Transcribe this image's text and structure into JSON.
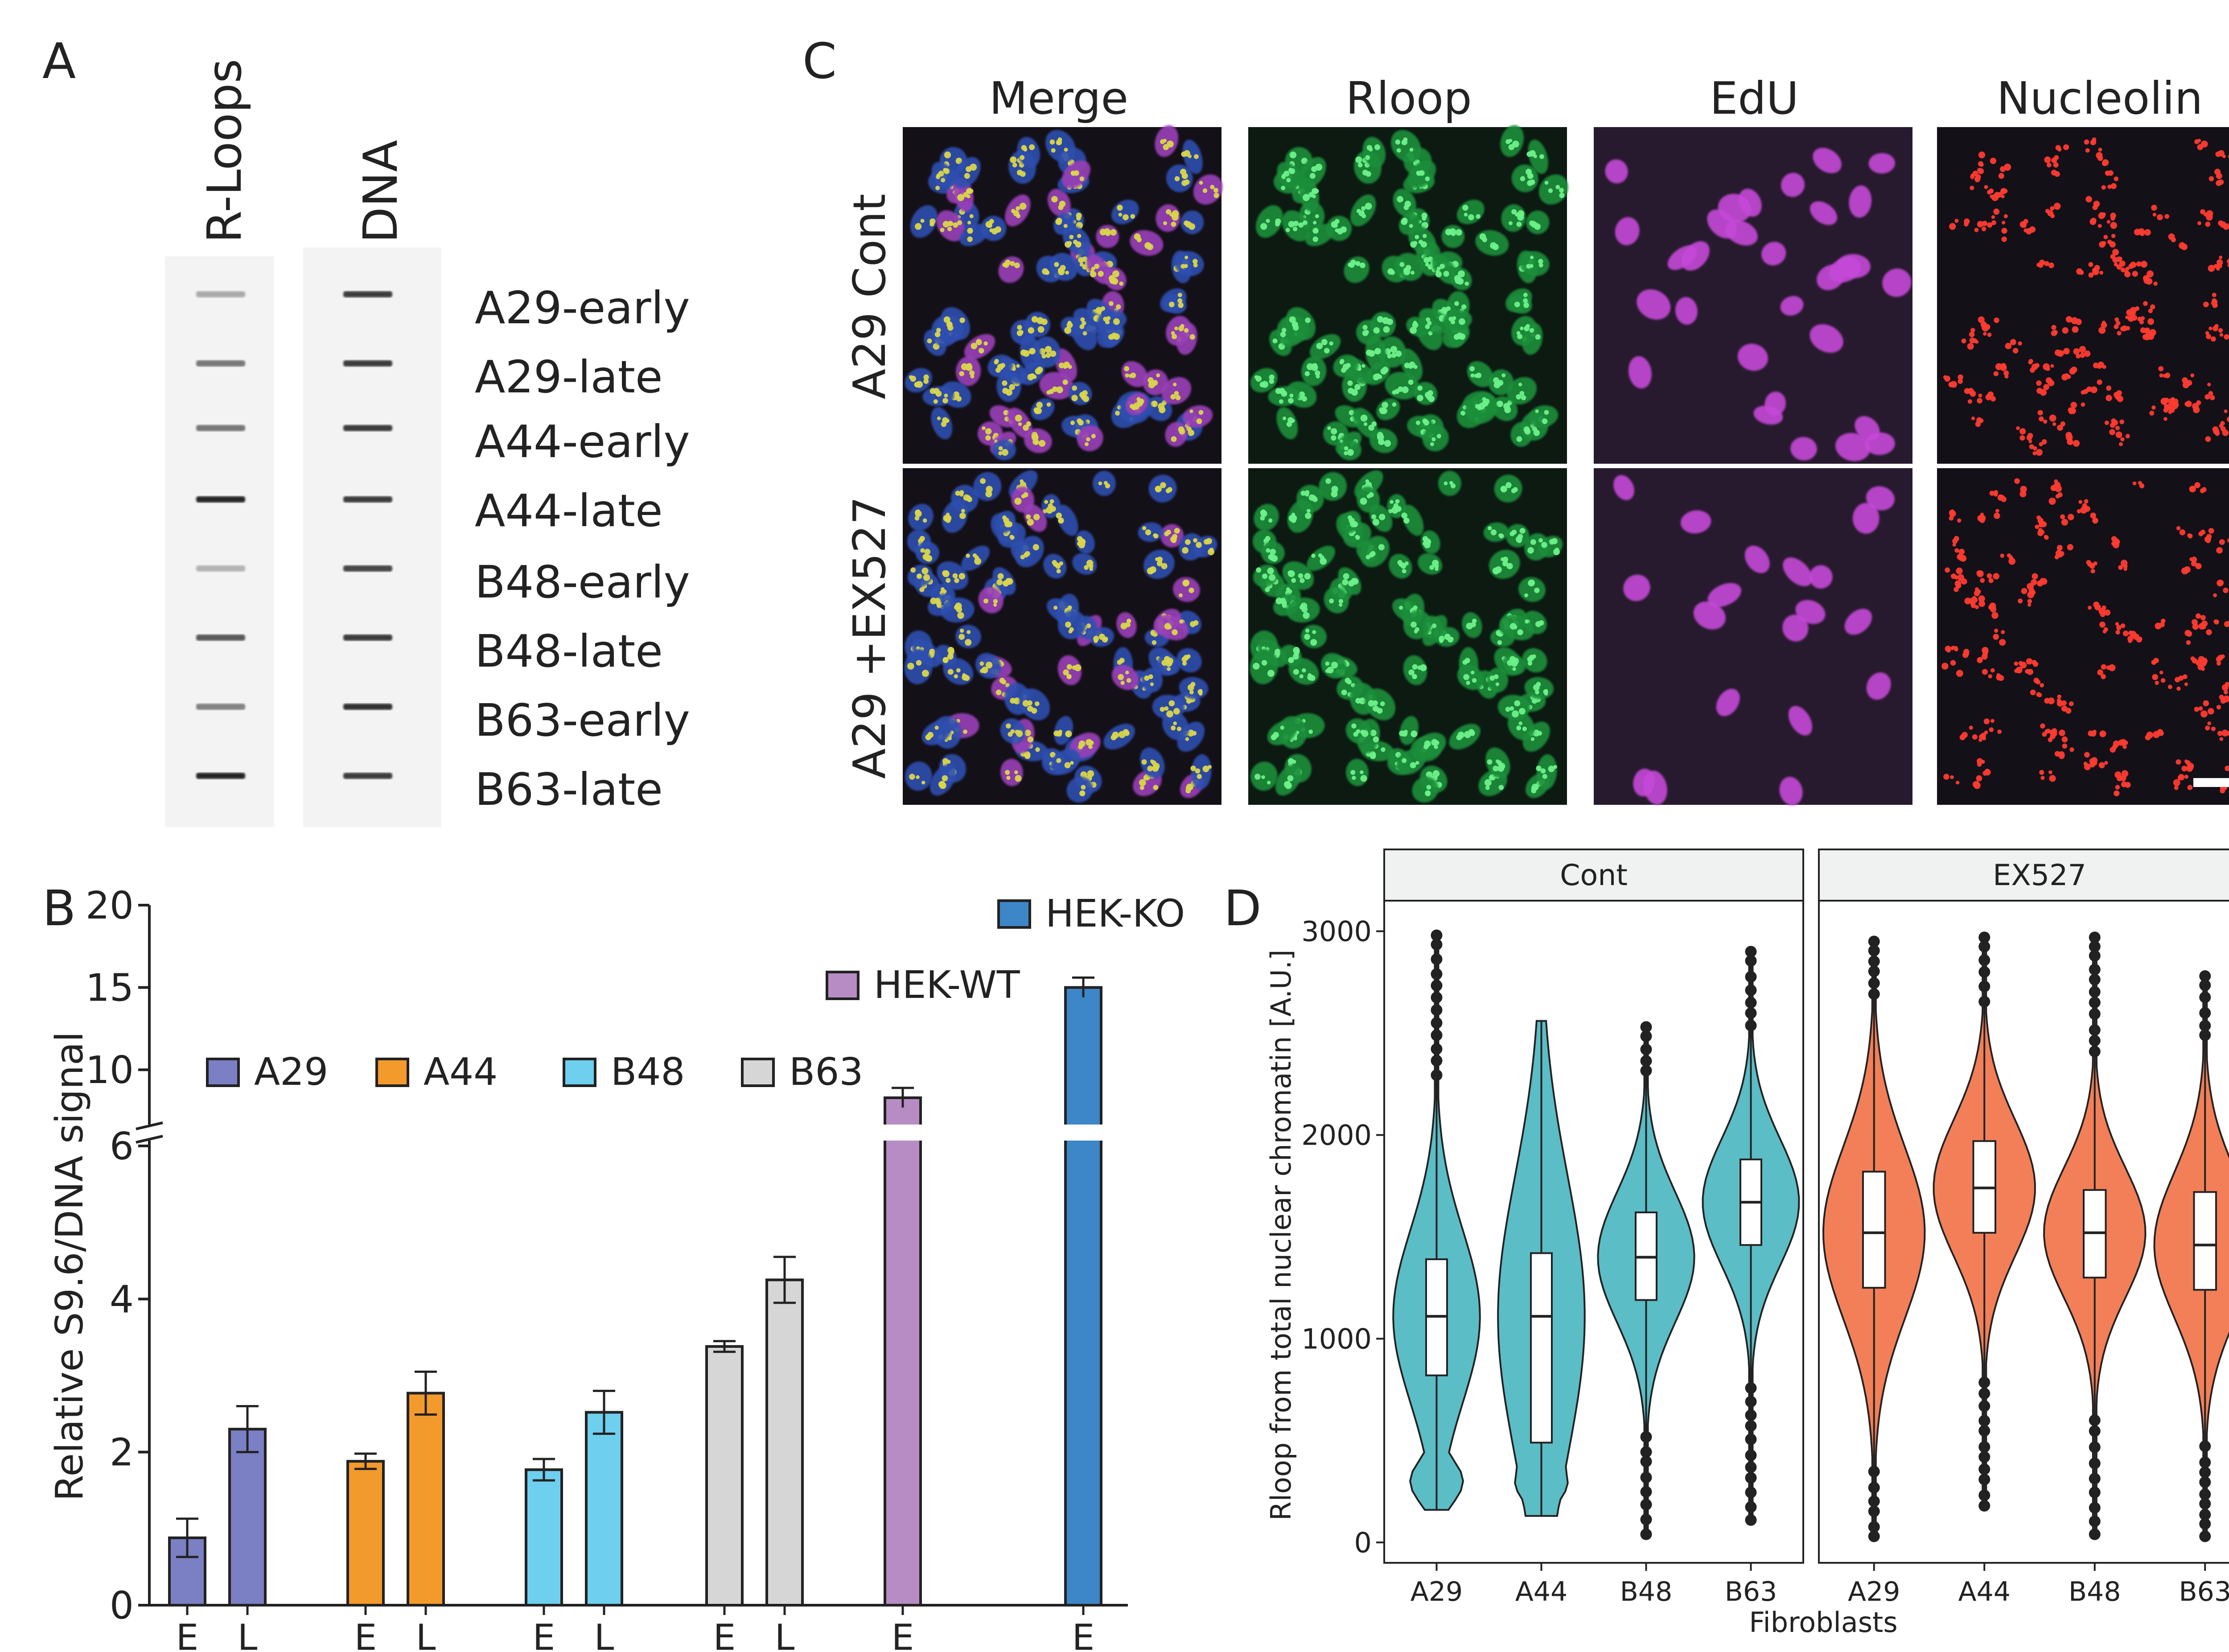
{
  "panels": {
    "A": {
      "letter": "A",
      "column_labels": [
        "R-Loops",
        "DNA"
      ],
      "row_labels": [
        "A29-early",
        "A29-late",
        "A44-early",
        "A44-late",
        "B48-early",
        "B48-late",
        "B63-early",
        "B63-late"
      ],
      "rloop_intensity": [
        0.3,
        0.55,
        0.55,
        0.95,
        0.25,
        0.7,
        0.5,
        0.95
      ],
      "dna_intensity": [
        0.85,
        0.85,
        0.85,
        0.85,
        0.8,
        0.85,
        0.9,
        0.85
      ]
    },
    "B": {
      "letter": "B"
    },
    "C": {
      "letter": "C",
      "column_labels": [
        "Merge",
        "Rloop",
        "EdU",
        "Nucleolin"
      ],
      "row_labels": [
        "A29 Cont",
        "A29 +EX527"
      ]
    },
    "D": {
      "letter": "D"
    }
  },
  "chart_data": [
    {
      "id": "B",
      "type": "bar",
      "ylabel": "Relative S9.6/DNA signal",
      "axis_break": true,
      "lower_ylim": [
        0,
        6
      ],
      "lower_yticks": [
        "0",
        "2",
        "4",
        "6"
      ],
      "upper_ylim": [
        7,
        20
      ],
      "upper_yticks": [
        "10",
        "15",
        "20"
      ],
      "legend": [
        {
          "name": "A29",
          "color": "#7b7fc4"
        },
        {
          "name": "A44",
          "color": "#f39a2c"
        },
        {
          "name": "B48",
          "color": "#6ecfef"
        },
        {
          "name": "B63",
          "color": "#d6d6d6"
        },
        {
          "name": "HEK-WT",
          "color": "#b78cc4"
        },
        {
          "name": "HEK-KO",
          "color": "#3d86c8"
        }
      ],
      "bars": [
        {
          "group": "A29",
          "label": "E",
          "value": 0.88,
          "error": 0.25,
          "color": "#7b7fc4"
        },
        {
          "group": "A29",
          "label": "L",
          "value": 2.3,
          "error": 0.3,
          "color": "#7b7fc4"
        },
        {
          "group": "A44",
          "label": "E",
          "value": 1.88,
          "error": 0.1,
          "color": "#f39a2c"
        },
        {
          "group": "A44",
          "label": "L",
          "value": 2.77,
          "error": 0.28,
          "color": "#f39a2c"
        },
        {
          "group": "B48",
          "label": "E",
          "value": 1.77,
          "error": 0.14,
          "color": "#6ecfef"
        },
        {
          "group": "B48",
          "label": "L",
          "value": 2.52,
          "error": 0.28,
          "color": "#6ecfef"
        },
        {
          "group": "B63",
          "label": "E",
          "value": 3.38,
          "error": 0.07,
          "color": "#d6d6d6"
        },
        {
          "group": "B63",
          "label": "L",
          "value": 4.25,
          "error": 0.3,
          "color": "#d6d6d6"
        },
        {
          "group": "HEK-WT",
          "label": "E",
          "value": 8.3,
          "error": 0.6,
          "color": "#b78cc4"
        },
        {
          "group": "HEK-KO",
          "label": "E",
          "value": 15.0,
          "error": 0.6,
          "color": "#3d86c8"
        }
      ]
    },
    {
      "id": "D",
      "type": "violin",
      "facets": [
        "Cont",
        "EX527"
      ],
      "categories": [
        "A29",
        "A44",
        "B48",
        "B63"
      ],
      "xlabel": "Fibroblasts",
      "ylabel": "Rloop from total nuclear chromatin [A.U.]",
      "ylim": [
        -100,
        3150
      ],
      "yticks": [
        "0",
        "1000",
        "2000",
        "3000"
      ],
      "fill_colors": {
        "Cont": "#5bbdc6",
        "EX527": "#f37f58"
      },
      "series": [
        {
          "facet": "Cont",
          "category": "A29",
          "q1": 820,
          "median": 1110,
          "q3": 1390,
          "whisker_low": 160,
          "whisker_high": 2980
        },
        {
          "facet": "Cont",
          "category": "A44",
          "q1": 490,
          "median": 1110,
          "q3": 1420,
          "whisker_low": 130,
          "whisker_high": 2560
        },
        {
          "facet": "Cont",
          "category": "B48",
          "q1": 1190,
          "median": 1400,
          "q3": 1620,
          "whisker_low": 40,
          "whisker_high": 2530
        },
        {
          "facet": "Cont",
          "category": "B63",
          "q1": 1460,
          "median": 1670,
          "q3": 1880,
          "whisker_low": 110,
          "whisker_high": 2900
        },
        {
          "facet": "EX527",
          "category": "A29",
          "q1": 1250,
          "median": 1520,
          "q3": 1820,
          "whisker_low": 30,
          "whisker_high": 2950
        },
        {
          "facet": "EX527",
          "category": "A44",
          "q1": 1520,
          "median": 1740,
          "q3": 1970,
          "whisker_low": 180,
          "whisker_high": 2970
        },
        {
          "facet": "EX527",
          "category": "B48",
          "q1": 1300,
          "median": 1520,
          "q3": 1730,
          "whisker_low": 40,
          "whisker_high": 2970
        },
        {
          "facet": "EX527",
          "category": "B63",
          "q1": 1240,
          "median": 1460,
          "q3": 1720,
          "whisker_low": 30,
          "whisker_high": 2780
        }
      ]
    }
  ]
}
